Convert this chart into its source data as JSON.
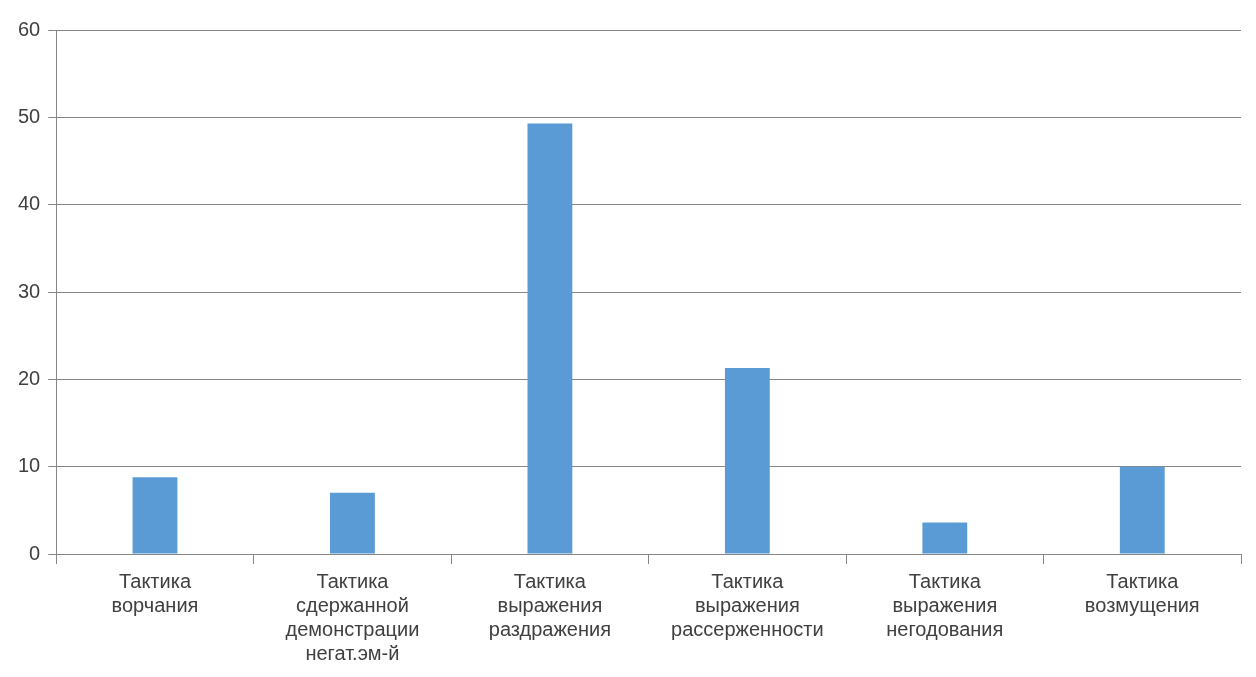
{
  "chart_data": {
    "type": "bar",
    "categories": [
      "Тактика ворчания",
      "Тактика сдержанной демонстрации негат.эм-й",
      "Тактика выражения раздражения",
      "Тактика выражения рассерженности",
      "Тактика выражения негодования",
      "Тактика возмущения"
    ],
    "values": [
      8.8,
      7,
      49.3,
      21.3,
      3.6,
      10
    ],
    "color": "#5b9bd5",
    "ylim": [
      0,
      60
    ],
    "yticks": [
      0,
      10,
      20,
      30,
      40,
      50,
      60
    ],
    "grid": "y",
    "legend": false
  }
}
